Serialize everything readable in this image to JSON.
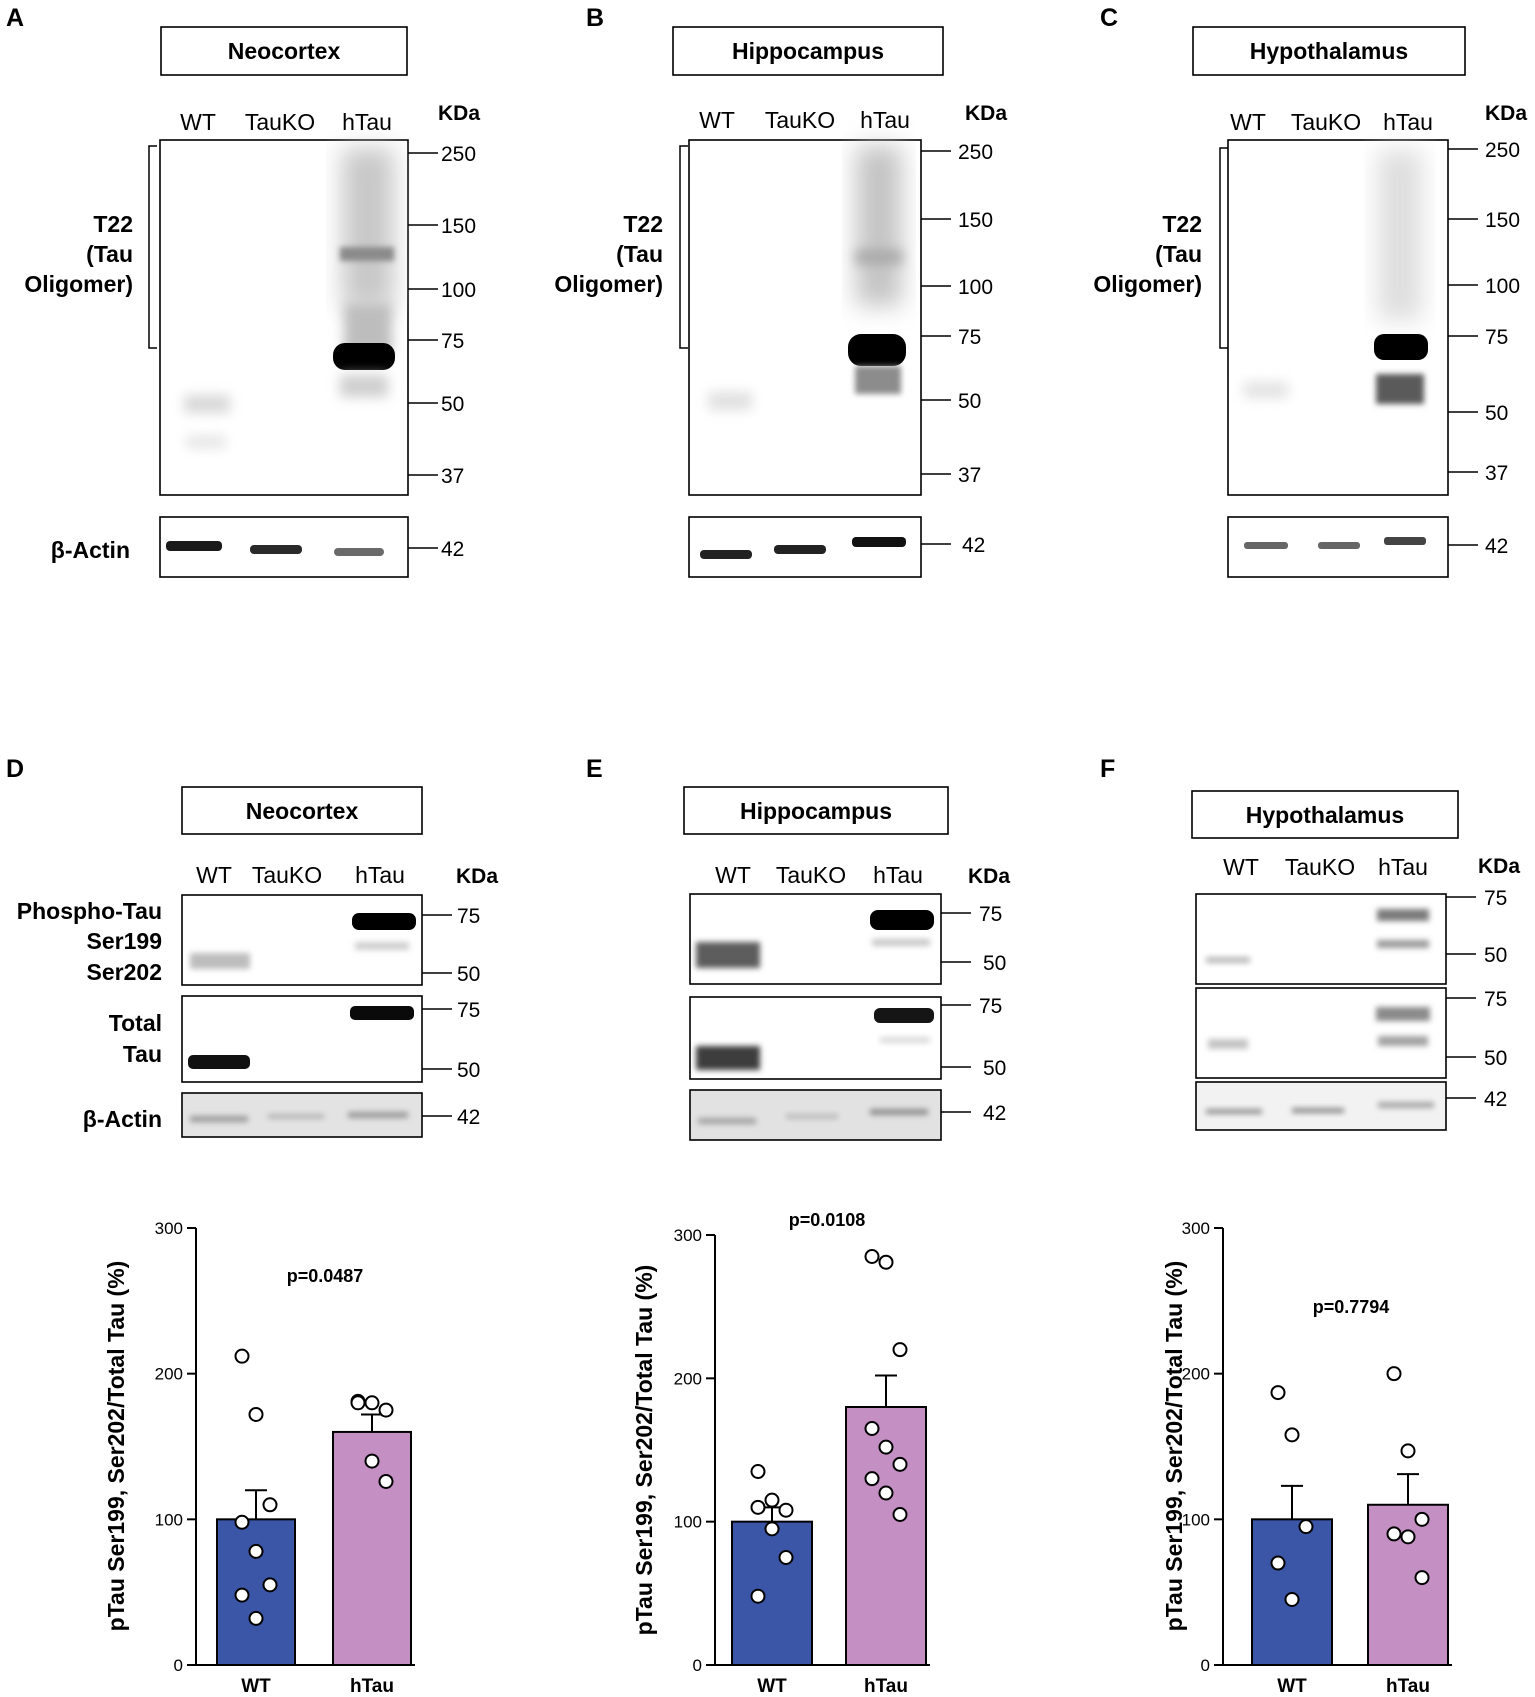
{
  "panel_letters": [
    "A",
    "B",
    "C",
    "D",
    "E",
    "F"
  ],
  "regions": [
    "Neocortex",
    "Hippocampus",
    "Hypothalamus"
  ],
  "lanes": [
    "WT",
    "TauKO",
    "hTau"
  ],
  "kda_header": "KDa",
  "blot_top": {
    "antibody_lines": [
      "T22",
      "(Tau",
      "Oligomer)"
    ],
    "markers": [
      "250",
      "150",
      "100",
      "75",
      "50",
      "37"
    ],
    "actin_label": "β-Actin",
    "actin_marker": "42"
  },
  "blot_bottom": {
    "phospho_lines": [
      "Phospho-Tau",
      "Ser199",
      "Ser202"
    ],
    "total_lines": [
      "Total",
      "Tau"
    ],
    "actin_label": "β-Actin",
    "markers_pair": [
      "75",
      "50"
    ],
    "actin_marker": "42"
  },
  "colors": {
    "wt": "#3b56a6",
    "htau": "#c48fc3",
    "axis": "#000000"
  },
  "chart_data": [
    {
      "type": "bar",
      "panel": "D",
      "region": "Neocortex",
      "categories": [
        "WT",
        "hTau"
      ],
      "values": [
        100,
        160
      ],
      "sem": [
        20,
        12
      ],
      "points": [
        [
          212,
          172,
          110,
          98,
          78,
          55,
          48,
          32
        ],
        [
          181,
          180,
          175,
          180,
          140,
          126
        ]
      ],
      "pvalue": "p=0.0487",
      "ylabel": "pTau Ser199, Ser202/Total Tau (%)",
      "ylim": [
        0,
        300
      ],
      "yticks": [
        "0",
        "100",
        "200",
        "300"
      ]
    },
    {
      "type": "bar",
      "panel": "E",
      "region": "Hippocampus",
      "categories": [
        "WT",
        "hTau"
      ],
      "values": [
        100,
        180
      ],
      "sem": [
        10,
        22
      ],
      "points": [
        [
          135,
          115,
          108,
          110,
          95,
          75,
          48
        ],
        [
          285,
          281,
          220,
          165,
          152,
          140,
          130,
          120,
          105
        ]
      ],
      "pvalue": "p=0.0108",
      "ylabel": "pTau Ser199, Ser202/Total Tau (%)",
      "ylim": [
        0,
        300
      ],
      "yticks": [
        "0",
        "100",
        "200",
        "300"
      ]
    },
    {
      "type": "bar",
      "panel": "F",
      "region": "Hypothalamus",
      "categories": [
        "WT",
        "hTau"
      ],
      "values": [
        100,
        110
      ],
      "sem": [
        23,
        21
      ],
      "points": [
        [
          187,
          158,
          95,
          70,
          45
        ],
        [
          200,
          147,
          100,
          90,
          88,
          60
        ]
      ],
      "pvalue": "p=0.7794",
      "ylabel": "pTau Ser199, Ser202/Total Tau (%)",
      "ylim": [
        0,
        300
      ],
      "yticks": [
        "0",
        "100",
        "200",
        "300"
      ]
    }
  ]
}
